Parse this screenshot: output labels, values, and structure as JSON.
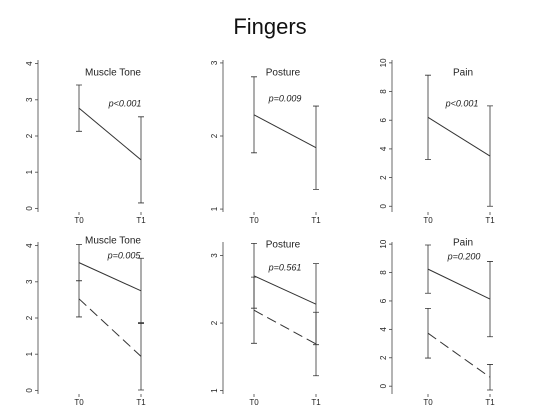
{
  "title": "Fingers",
  "chart_data": [
    {
      "type": "line",
      "title": "Muscle Tone",
      "annotation": "p<0.001",
      "categories": [
        "T0",
        "T1"
      ],
      "series": [
        {
          "color": "#333333",
          "values": [
            2.77,
            1.34
          ],
          "errors": [
            0.64,
            1.19
          ]
        }
      ],
      "ylim": [
        -0.1,
        4.1
      ],
      "yticks": [
        0,
        1,
        2,
        3,
        4
      ]
    },
    {
      "type": "line",
      "title": "Posture",
      "annotation": "p=0.009",
      "categories": [
        "T0",
        "T1"
      ],
      "series": [
        {
          "color": "#333333",
          "values": [
            2.29,
            1.84
          ],
          "errors": [
            0.52,
            0.57
          ]
        }
      ],
      "ylim": [
        0.96,
        3.04
      ],
      "yticks": [
        1,
        2,
        3
      ]
    },
    {
      "type": "line",
      "title": "Pain",
      "annotation": "p<0.001",
      "categories": [
        "T0",
        "T1"
      ],
      "series": [
        {
          "color": "#333333",
          "values": [
            6.2,
            3.5
          ],
          "errors": [
            2.94,
            3.5
          ]
        }
      ],
      "ylim": [
        -0.4,
        10.2
      ],
      "yticks": [
        0,
        2,
        4,
        6,
        8,
        10
      ]
    },
    {
      "type": "line",
      "title": "Muscle Tone",
      "annotation": "p=0.005",
      "categories": [
        "T0",
        "T1"
      ],
      "series": [
        {
          "color": "#333333",
          "values": [
            3.53,
            2.75
          ],
          "errors": [
            0.5,
            0.9
          ]
        },
        {
          "color": "#333333",
          "values": [
            2.53,
            0.94
          ],
          "errors": [
            0.5,
            0.93
          ],
          "dashed": true
        }
      ],
      "ylim": [
        -0.1,
        4.1
      ],
      "yticks": [
        0,
        1,
        2,
        3,
        4
      ]
    },
    {
      "type": "line",
      "title": "Posture",
      "annotation": "p=0.561",
      "categories": [
        "T0",
        "T1"
      ],
      "series": [
        {
          "color": "#333333",
          "values": [
            2.7,
            2.28
          ],
          "errors": [
            0.48,
            0.6
          ]
        },
        {
          "color": "#333333",
          "values": [
            2.19,
            1.69
          ],
          "errors": [
            0.49,
            0.47
          ],
          "dashed": true
        }
      ],
      "ylim": [
        0.95,
        3.2
      ],
      "yticks": [
        1,
        2,
        3
      ]
    },
    {
      "type": "line",
      "title": "Pain",
      "annotation": "p=0.200",
      "categories": [
        "T0",
        "T1"
      ],
      "series": [
        {
          "color": "#333333",
          "values": [
            8.24,
            6.13
          ],
          "errors": [
            1.7,
            2.65
          ]
        },
        {
          "color": "#333333",
          "values": [
            3.73,
            0.63
          ],
          "errors": [
            1.75,
            0.9
          ],
          "dashed": true
        }
      ],
      "ylim": [
        -0.55,
        10.15
      ],
      "yticks": [
        0,
        2,
        4,
        6,
        8,
        10
      ]
    }
  ]
}
